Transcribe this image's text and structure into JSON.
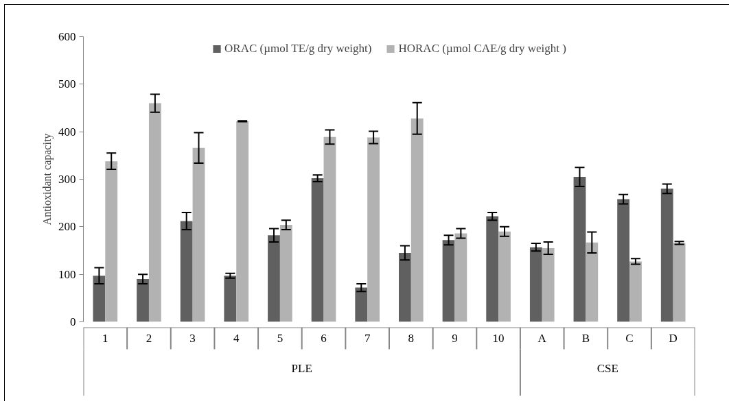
{
  "chart_data": {
    "type": "bar",
    "ylabel": "Antioxidant capacity",
    "categories": [
      "1",
      "2",
      "3",
      "4",
      "5",
      "6",
      "7",
      "8",
      "9",
      "10",
      "A",
      "B",
      "C",
      "D"
    ],
    "series": [
      {
        "name": "ORAC (µmol TE/g dry weight)",
        "color": "#606060",
        "values": [
          97,
          90,
          212,
          97,
          182,
          302,
          72,
          145,
          172,
          222,
          157,
          305,
          258,
          280
        ],
        "errors": [
          17,
          10,
          18,
          5,
          14,
          7,
          8,
          15,
          10,
          8,
          8,
          20,
          10,
          10
        ]
      },
      {
        "name": "HORAC (µmol CAE/g dry weight )",
        "color": "#b2b2b2",
        "values": [
          338,
          460,
          366,
          422,
          204,
          389,
          388,
          428,
          186,
          190,
          155,
          167,
          127,
          166
        ],
        "errors": [
          17,
          19,
          32,
          1,
          10,
          15,
          13,
          33,
          10,
          10,
          13,
          22,
          6,
          3
        ]
      }
    ],
    "ylim": [
      0,
      600
    ],
    "yticks": [
      0,
      100,
      200,
      300,
      400,
      500,
      600
    ],
    "grid": false,
    "legend": "top",
    "annotations": [
      "PLE",
      "CSE"
    ]
  }
}
